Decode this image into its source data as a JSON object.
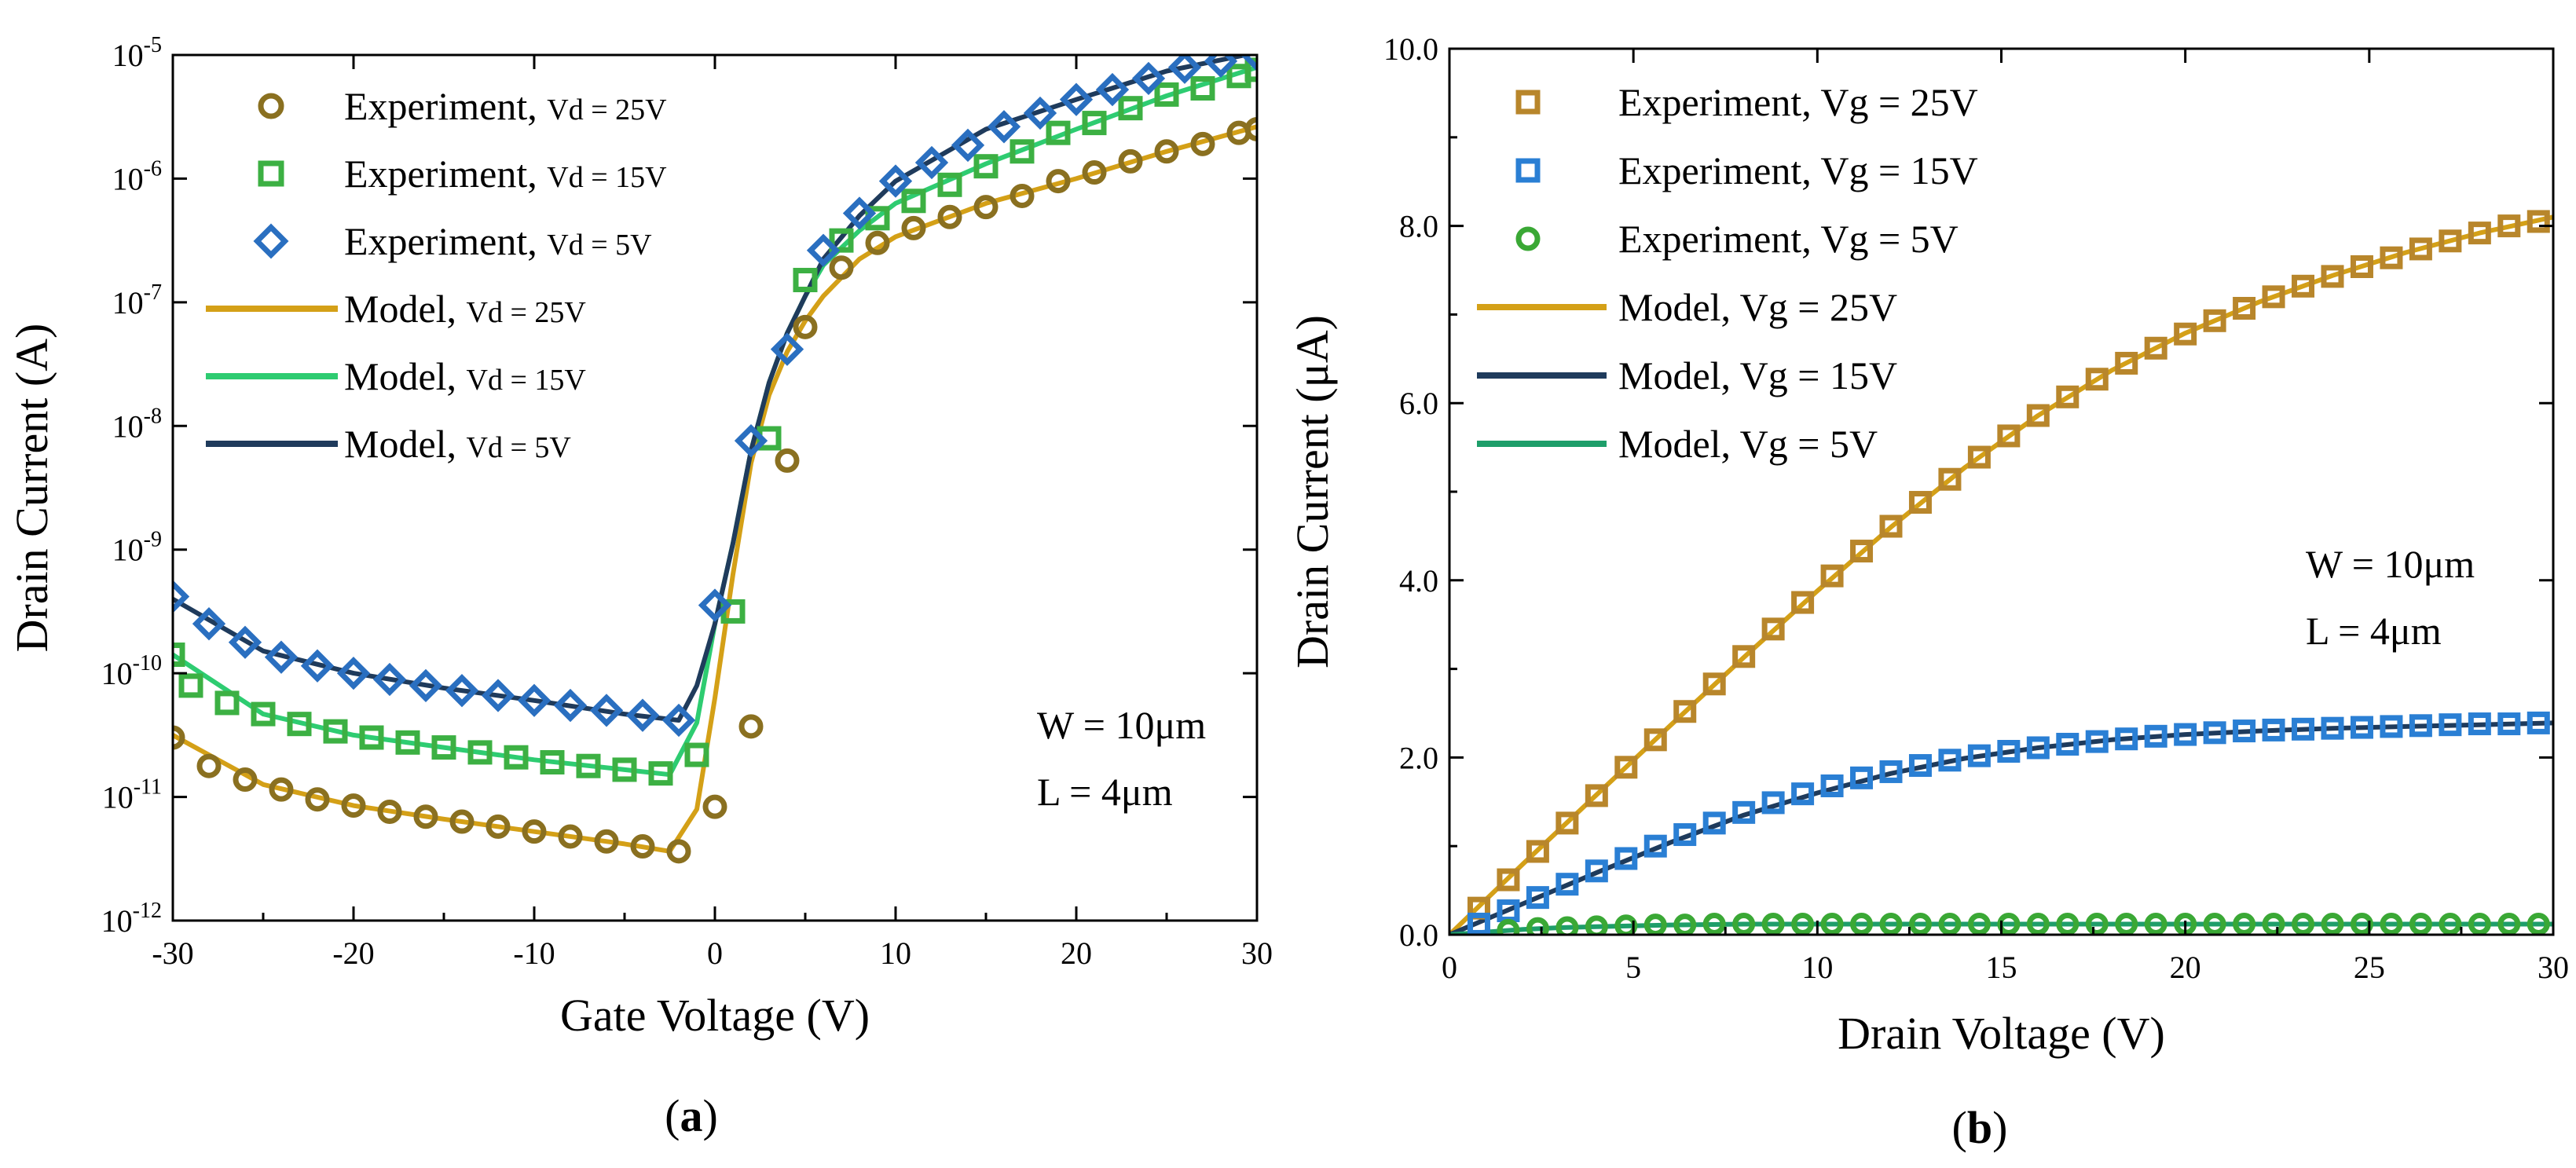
{
  "colors": {
    "vd25": "#d4a017",
    "vd25_exp": "#8a7020",
    "vd15": "#22b14c",
    "vd15_exp": "#3cb043",
    "vd15_model": "#2ecc71",
    "vd5": "#1f3b5c",
    "vd5_exp": "#2a6fc0",
    "vg25": "#d4a017",
    "vg25_exp": "#b8862b",
    "vg15_exp": "#2a7fd4",
    "vg15_model": "#1f3b5c",
    "vg5_exp": "#3aa835",
    "vg5_model": "#1e9e6a"
  },
  "panels": {
    "a": {
      "label_open": "(",
      "label_letter": "a",
      "label_close": ")"
    },
    "b": {
      "label_open": "(",
      "label_letter": "b",
      "label_close": ")"
    }
  },
  "chart_data": [
    {
      "type": "scatter",
      "id": "a",
      "title": "",
      "xlabel": "Gate Voltage (V)",
      "ylabel": "Drain Current (A)",
      "xlim": [
        -30,
        30
      ],
      "ylim_log10": [
        -12,
        -5
      ],
      "yscale": "log",
      "x_ticks": [
        -30,
        -20,
        -10,
        0,
        10,
        20,
        30
      ],
      "y_ticks": [
        {
          "base": "10",
          "exp": "-12"
        },
        {
          "base": "10",
          "exp": "-11"
        },
        {
          "base": "10",
          "exp": "-10"
        },
        {
          "base": "10",
          "exp": "-9"
        },
        {
          "base": "10",
          "exp": "-8"
        },
        {
          "base": "10",
          "exp": "-7"
        },
        {
          "base": "10",
          "exp": "-6"
        },
        {
          "base": "10",
          "exp": "-5"
        }
      ],
      "legend": [
        {
          "text": "Experiment, ",
          "sub": "Vd = 25V",
          "kind": "marker",
          "marker": "circle",
          "color_key": "vd25_exp"
        },
        {
          "text": "Experiment, ",
          "sub": "Vd = 15V",
          "kind": "marker",
          "marker": "square",
          "color_key": "vd15_exp"
        },
        {
          "text": "Experiment, ",
          "sub": "Vd = 5V",
          "kind": "marker",
          "marker": "diamond",
          "color_key": "vd5_exp"
        },
        {
          "text": "Model, ",
          "sub": "Vd = 25V",
          "kind": "line",
          "color_key": "vd25"
        },
        {
          "text": "Model, ",
          "sub": "Vd = 15V",
          "kind": "line",
          "color_key": "vd15_model"
        },
        {
          "text": "Model, ",
          "sub": "Vd = 5V",
          "kind": "line",
          "color_key": "vd5"
        }
      ],
      "annotations": [
        "W = 10μm",
        "L = 4μm"
      ],
      "series": [
        {
          "name": "Experiment, Vd = 25V",
          "marker": "circle",
          "color_key": "vd25_exp",
          "x": [
            -30,
            -28,
            -26,
            -24,
            -22,
            -20,
            -18,
            -16,
            -14,
            -12,
            -10,
            -8,
            -6,
            -4,
            -2,
            0,
            2,
            4,
            5,
            7,
            9,
            11,
            13,
            15,
            17,
            19,
            21,
            23,
            25,
            27,
            29,
            30
          ],
          "log10y": [
            -10.52,
            -10.75,
            -10.86,
            -10.94,
            -11.02,
            -11.07,
            -11.12,
            -11.16,
            -11.2,
            -11.24,
            -11.28,
            -11.32,
            -11.36,
            -11.4,
            -11.44,
            -11.08,
            -10.43,
            -8.28,
            -7.2,
            -6.72,
            -6.52,
            -6.4,
            -6.31,
            -6.23,
            -6.14,
            -6.02,
            -5.95,
            -5.86,
            -5.78,
            -5.72,
            -5.63,
            -5.6
          ]
        },
        {
          "name": "Experiment, Vd = 15V",
          "marker": "square",
          "color_key": "vd15_exp",
          "x": [
            -30,
            -29,
            -27,
            -25,
            -23,
            -21,
            -19,
            -17,
            -15,
            -13,
            -11,
            -9,
            -7,
            -5,
            -3,
            -1,
            1,
            3,
            5,
            7,
            9,
            11,
            13,
            15,
            17,
            19,
            21,
            23,
            25,
            27,
            29,
            30
          ],
          "log10y": [
            -9.85,
            -10.1,
            -10.24,
            -10.33,
            -10.41,
            -10.47,
            -10.52,
            -10.56,
            -10.6,
            -10.64,
            -10.68,
            -10.72,
            -10.75,
            -10.78,
            -10.81,
            -10.66,
            -9.5,
            -8.1,
            -6.82,
            -6.5,
            -6.32,
            -6.18,
            -6.05,
            -5.9,
            -5.78,
            -5.63,
            -5.55,
            -5.43,
            -5.32,
            -5.27,
            -5.17,
            -5.12
          ]
        },
        {
          "name": "Experiment, Vd = 5V",
          "marker": "diamond",
          "color_key": "vd5_exp",
          "x": [
            -30,
            -28,
            -26,
            -24,
            -22,
            -20,
            -18,
            -16,
            -14,
            -12,
            -10,
            -8,
            -6,
            -4,
            -2,
            0,
            2,
            4,
            6,
            8,
            10,
            12,
            14,
            16,
            18,
            20,
            22,
            24,
            26,
            28,
            30
          ],
          "log10y": [
            -9.38,
            -9.6,
            -9.75,
            -9.87,
            -9.94,
            -10.0,
            -10.05,
            -10.1,
            -10.14,
            -10.18,
            -10.22,
            -10.26,
            -10.3,
            -10.34,
            -10.38,
            -9.45,
            -8.12,
            -7.38,
            -6.58,
            -6.28,
            -6.02,
            -5.87,
            -5.73,
            -5.58,
            -5.47,
            -5.36,
            -5.28,
            -5.19,
            -5.1,
            -5.05,
            -5.0
          ]
        },
        {
          "name": "Model, Vd = 25V",
          "kind": "line",
          "color_key": "vd25",
          "x": [
            -30,
            -25,
            -20,
            -15,
            -10,
            -5,
            -2.5,
            -1,
            0,
            1,
            2,
            3,
            4,
            5,
            6,
            8,
            10,
            15,
            20,
            25,
            30
          ],
          "log10y": [
            -10.5,
            -10.9,
            -11.07,
            -11.18,
            -11.28,
            -11.38,
            -11.44,
            -11.1,
            -10.2,
            -9.2,
            -8.3,
            -7.75,
            -7.4,
            -7.15,
            -6.95,
            -6.65,
            -6.47,
            -6.2,
            -6.0,
            -5.78,
            -5.58
          ]
        },
        {
          "name": "Model, Vd = 15V",
          "kind": "line",
          "color_key": "vd15_model",
          "x": [
            -30,
            -25,
            -20,
            -15,
            -10,
            -5,
            -2.5,
            -1,
            0,
            1,
            2,
            3,
            4,
            5,
            6,
            8,
            10,
            15,
            20,
            25,
            30
          ],
          "log10y": [
            -9.85,
            -10.33,
            -10.5,
            -10.6,
            -10.7,
            -10.78,
            -10.82,
            -10.4,
            -9.6,
            -8.95,
            -8.2,
            -7.65,
            -7.25,
            -6.95,
            -6.7,
            -6.42,
            -6.2,
            -5.88,
            -5.6,
            -5.33,
            -5.1
          ]
        },
        {
          "name": "Model, Vd = 5V",
          "kind": "line",
          "color_key": "vd5",
          "x": [
            -30,
            -25,
            -20,
            -15,
            -10,
            -5,
            -2,
            -1,
            0,
            1,
            2,
            3,
            4,
            5,
            6,
            8,
            10,
            15,
            20,
            25,
            30
          ],
          "log10y": [
            -9.4,
            -9.82,
            -10.0,
            -10.12,
            -10.22,
            -10.33,
            -10.38,
            -10.1,
            -9.6,
            -8.95,
            -8.2,
            -7.65,
            -7.25,
            -6.95,
            -6.65,
            -6.3,
            -6.02,
            -5.6,
            -5.36,
            -5.13,
            -4.98
          ]
        }
      ]
    },
    {
      "type": "scatter",
      "id": "b",
      "title": "",
      "xlabel": "Drain Voltage (V)",
      "ylabel": "Drain Current (μA)",
      "xlim": [
        0,
        30
      ],
      "ylim": [
        0,
        10
      ],
      "x_ticks": [
        "0",
        "5",
        "10",
        "15",
        "20",
        "25",
        "30"
      ],
      "y_ticks": [
        "0.0",
        "2.0",
        "4.0",
        "6.0",
        "8.0",
        "10.0"
      ],
      "legend": [
        {
          "text": "Experiment, Vg = 25V",
          "kind": "marker",
          "marker": "square",
          "color_key": "vg25_exp"
        },
        {
          "text": "Experiment, Vg = 15V",
          "kind": "marker",
          "marker": "square",
          "color_key": "vg15_exp"
        },
        {
          "text": "Experiment, Vg = 5V",
          "kind": "marker",
          "marker": "circle",
          "color_key": "vg5_exp"
        },
        {
          "text": "Model, Vg = 25V",
          "kind": "line",
          "color_key": "vg25"
        },
        {
          "text": "Model, Vg = 15V",
          "kind": "line",
          "color_key": "vg15_model"
        },
        {
          "text": "Model, Vg = 5V",
          "kind": "line",
          "color_key": "vg5_model"
        }
      ],
      "annotations": [
        "W = 10μm",
        "L = 4μm"
      ],
      "series": [
        {
          "name": "Experiment, Vg = 25V",
          "marker": "square",
          "color_key": "vg25_exp",
          "x": [
            0.8,
            1.6,
            2.4,
            3.2,
            4.0,
            4.8,
            5.6,
            6.4,
            7.2,
            8.0,
            8.8,
            9.6,
            10.4,
            11.2,
            12.0,
            12.8,
            13.6,
            14.4,
            15.2,
            16.0,
            16.8,
            17.6,
            18.4,
            19.2,
            20.0,
            20.8,
            21.6,
            22.4,
            23.2,
            24.0,
            24.8,
            25.6,
            26.4,
            27.2,
            28.0,
            28.8,
            29.6
          ],
          "y": [
            0.3,
            0.62,
            0.94,
            1.26,
            1.57,
            1.89,
            2.2,
            2.52,
            2.83,
            3.14,
            3.45,
            3.75,
            4.05,
            4.33,
            4.61,
            4.88,
            5.14,
            5.39,
            5.63,
            5.86,
            6.07,
            6.27,
            6.45,
            6.62,
            6.78,
            6.93,
            7.07,
            7.2,
            7.32,
            7.43,
            7.54,
            7.64,
            7.74,
            7.83,
            7.92,
            8.0,
            8.05
          ]
        },
        {
          "name": "Experiment, Vg = 15V",
          "marker": "square",
          "color_key": "vg15_exp",
          "x": [
            0.8,
            1.6,
            2.4,
            3.2,
            4.0,
            4.8,
            5.6,
            6.4,
            7.2,
            8.0,
            8.8,
            9.6,
            10.4,
            11.2,
            12.0,
            12.8,
            13.6,
            14.4,
            15.2,
            16.0,
            16.8,
            17.6,
            18.4,
            19.2,
            20.0,
            20.8,
            21.6,
            22.4,
            23.2,
            24.0,
            24.8,
            25.6,
            26.4,
            27.2,
            28.0,
            28.8,
            29.6
          ],
          "y": [
            0.12,
            0.27,
            0.42,
            0.57,
            0.72,
            0.86,
            1.0,
            1.13,
            1.26,
            1.38,
            1.49,
            1.59,
            1.68,
            1.77,
            1.84,
            1.91,
            1.97,
            2.02,
            2.07,
            2.11,
            2.15,
            2.18,
            2.21,
            2.24,
            2.26,
            2.28,
            2.3,
            2.31,
            2.32,
            2.33,
            2.34,
            2.35,
            2.36,
            2.37,
            2.38,
            2.38,
            2.39
          ]
        },
        {
          "name": "Experiment, Vg = 5V",
          "marker": "circle",
          "color_key": "vg5_exp",
          "x": [
            1.6,
            2.4,
            3.2,
            4.0,
            4.8,
            5.6,
            6.4,
            7.2,
            8.0,
            8.8,
            9.6,
            10.4,
            11.2,
            12.0,
            12.8,
            13.6,
            14.4,
            15.2,
            16.0,
            16.8,
            17.6,
            18.4,
            19.2,
            20.0,
            20.8,
            21.6,
            22.4,
            23.2,
            24.0,
            24.8,
            25.6,
            26.4,
            27.2,
            28.0,
            28.8,
            29.6
          ],
          "y": [
            0.05,
            0.07,
            0.08,
            0.09,
            0.1,
            0.11,
            0.11,
            0.12,
            0.12,
            0.12,
            0.12,
            0.12,
            0.12,
            0.12,
            0.12,
            0.12,
            0.12,
            0.12,
            0.12,
            0.12,
            0.12,
            0.12,
            0.12,
            0.12,
            0.12,
            0.12,
            0.12,
            0.12,
            0.12,
            0.12,
            0.12,
            0.12,
            0.12,
            0.12,
            0.12,
            0.12
          ]
        },
        {
          "name": "Model, Vg = 25V",
          "kind": "line",
          "color_key": "vg25",
          "x": [
            0,
            2,
            4,
            6,
            8,
            10,
            12,
            14,
            16,
            18,
            20,
            22,
            24,
            26,
            28,
            30
          ],
          "y": [
            0.0,
            0.8,
            1.58,
            2.36,
            3.13,
            3.88,
            4.6,
            5.27,
            5.86,
            6.37,
            6.79,
            7.14,
            7.44,
            7.7,
            7.92,
            8.1
          ]
        },
        {
          "name": "Model, Vg = 15V",
          "kind": "line",
          "color_key": "vg15_model",
          "x": [
            0,
            2,
            4,
            6,
            8,
            10,
            12,
            14,
            16,
            18,
            20,
            22,
            24,
            26,
            28,
            30
          ],
          "y": [
            0.0,
            0.35,
            0.7,
            1.04,
            1.35,
            1.6,
            1.82,
            1.99,
            2.11,
            2.2,
            2.26,
            2.3,
            2.33,
            2.35,
            2.37,
            2.39
          ]
        },
        {
          "name": "Model, Vg = 5V",
          "kind": "line",
          "color_key": "vg5_model",
          "x": [
            0,
            1,
            2,
            3,
            4,
            6,
            8,
            10,
            15,
            20,
            25,
            30
          ],
          "y": [
            0.0,
            0.03,
            0.06,
            0.08,
            0.09,
            0.11,
            0.12,
            0.12,
            0.12,
            0.12,
            0.12,
            0.12
          ]
        }
      ]
    }
  ]
}
